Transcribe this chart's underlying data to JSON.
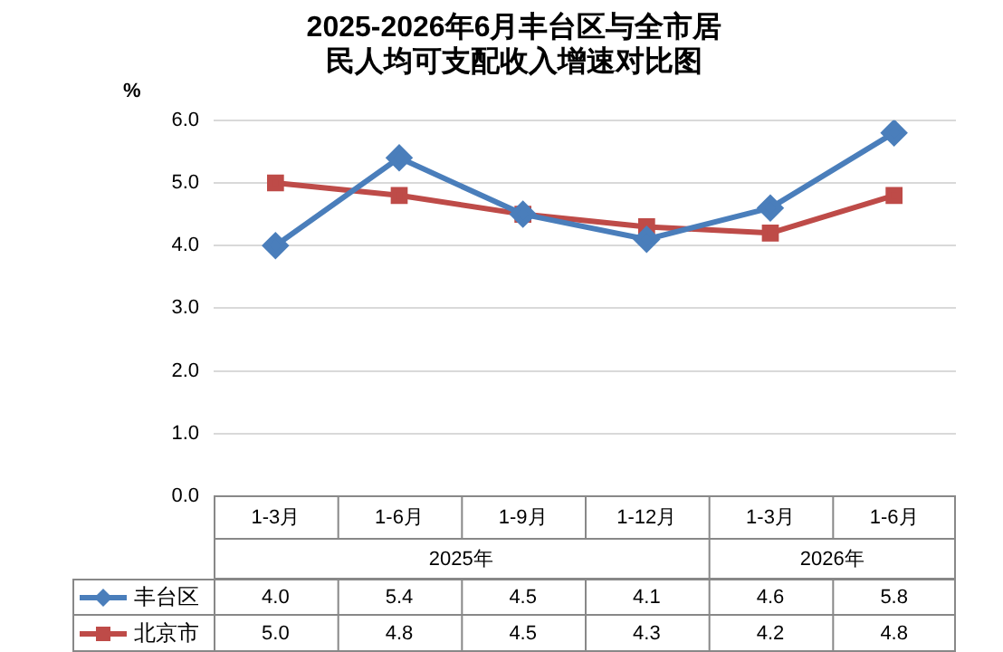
{
  "chart_data": {
    "type": "line",
    "title": "2025-2026年6月丰台区与全市居民人均可支配收入增速对比图",
    "ylabel": "%",
    "categories": [
      "1-3月",
      "1-6月",
      "1-9月",
      "1-12月",
      "1-3月",
      "1-6月"
    ],
    "annotations": [
      "2025年",
      "2026年"
    ],
    "series": [
      {
        "name": "丰台区",
        "color": "#4a7ebb",
        "marker": "diamond",
        "values": [
          4.0,
          5.4,
          4.5,
          4.1,
          4.6,
          5.8
        ],
        "value_labels": [
          "4.0",
          "5.4",
          "4.5",
          "4.1",
          "4.6",
          "5.8"
        ]
      },
      {
        "name": "北京市",
        "color": "#be4b48",
        "marker": "square",
        "values": [
          5.0,
          4.8,
          4.5,
          4.3,
          4.2,
          4.8
        ],
        "value_labels": [
          "5.0",
          "4.8",
          "4.5",
          "4.3",
          "4.2",
          "4.8"
        ]
      }
    ],
    "ylim": [
      0,
      6
    ],
    "yticks": [
      {
        "value": 0,
        "label": "0.0"
      },
      {
        "value": 1,
        "label": "1.0"
      },
      {
        "value": 2,
        "label": "2.0"
      },
      {
        "value": 3,
        "label": "3.0"
      },
      {
        "value": 4,
        "label": "4.0"
      },
      {
        "value": 5,
        "label": "5.0"
      },
      {
        "value": 6,
        "label": "6.0"
      }
    ],
    "grid": "y",
    "legend": "bottom",
    "line_style": "solid"
  }
}
